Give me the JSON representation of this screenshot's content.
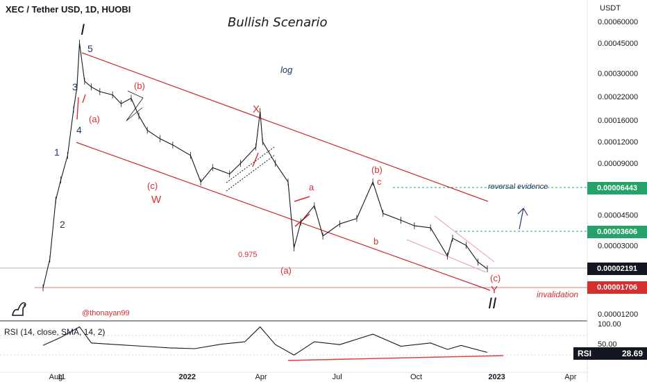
{
  "header": {
    "title": "XEC / Tether USD, 1D, HUOBI",
    "scenario": "Bullish Scenario",
    "currency": "USDT",
    "author": "@thonayan99"
  },
  "chart_data": {
    "type": "line",
    "scale": "log",
    "symbol": "XEC/USDT",
    "x": [
      "Aug",
      "11",
      "2022",
      "Apr",
      "Jul",
      "Oct",
      "2023",
      "Apr"
    ],
    "y_ticks": [
      "0.00060000",
      "0.00045000",
      "0.00030000",
      "0.00022000",
      "0.00016000",
      "0.00012000",
      "0.00009000",
      "0.00004500",
      "0.00003000",
      "0.00001200"
    ],
    "price_series": {
      "name": "XEC/USDT",
      "points": [
        [
          "2021-07-20",
          1.7e-05
        ],
        [
          "2021-07-28",
          2.5e-05
        ],
        [
          "2021-08-04",
          5.5e-05
        ],
        [
          "2021-08-10",
          7.2e-05
        ],
        [
          "2021-08-18",
          0.0001
        ],
        [
          "2021-08-25",
          0.000185
        ],
        [
          "2021-08-29",
          0.00025
        ],
        [
          "2021-09-01",
          0.00045
        ],
        [
          "2021-09-07",
          0.00027
        ],
        [
          "2021-09-15",
          0.00025
        ],
        [
          "2021-09-25",
          0.000235
        ],
        [
          "2021-10-10",
          0.000225
        ],
        [
          "2021-10-20",
          0.0002
        ],
        [
          "2021-11-01",
          0.000215
        ],
        [
          "2021-11-10",
          0.00017
        ],
        [
          "2021-11-20",
          0.00014
        ],
        [
          "2021-12-05",
          0.000125
        ],
        [
          "2021-12-20",
          0.000115
        ],
        [
          "2022-01-10",
          0.0001
        ],
        [
          "2022-01-22",
          7e-05
        ],
        [
          "2022-02-05",
          8.5e-05
        ],
        [
          "2022-02-25",
          7.8e-05
        ],
        [
          "2022-03-10",
          9e-05
        ],
        [
          "2022-03-28",
          0.000112
        ],
        [
          "2022-04-02",
          0.00018
        ],
        [
          "2022-04-05",
          0.00012
        ],
        [
          "2022-04-20",
          9e-05
        ],
        [
          "2022-05-05",
          7e-05
        ],
        [
          "2022-05-12",
          2.9e-05
        ],
        [
          "2022-05-20",
          4.1e-05
        ],
        [
          "2022-06-05",
          5.1e-05
        ],
        [
          "2022-06-15",
          3.4e-05
        ],
        [
          "2022-07-05",
          4e-05
        ],
        [
          "2022-07-25",
          4.3e-05
        ],
        [
          "2022-08-13",
          7e-05
        ],
        [
          "2022-08-25",
          4.6e-05
        ],
        [
          "2022-09-15",
          4.2e-05
        ],
        [
          "2022-10-01",
          3.9e-05
        ],
        [
          "2022-10-20",
          3.8e-05
        ],
        [
          "2022-11-09",
          2.6e-05
        ],
        [
          "2022-11-15",
          3.3e-05
        ],
        [
          "2022-12-01",
          3e-05
        ],
        [
          "2022-12-15",
          2.4e-05
        ],
        [
          "2022-12-26",
          2.19e-05
        ]
      ]
    },
    "rsi_series": {
      "name": "RSI (14, close, SMA, 14, 2)",
      "y_ticks": [
        "100.00",
        "50.00"
      ],
      "points": [
        [
          "2021-07-20",
          46
        ],
        [
          "2021-08-10",
          66
        ],
        [
          "2021-09-01",
          92
        ],
        [
          "2021-09-15",
          52
        ],
        [
          "2021-10-15",
          48
        ],
        [
          "2021-11-15",
          44
        ],
        [
          "2021-12-15",
          40
        ],
        [
          "2022-01-15",
          38
        ],
        [
          "2022-02-15",
          49
        ],
        [
          "2022-03-15",
          55
        ],
        [
          "2022-04-02",
          92
        ],
        [
          "2022-04-20",
          48
        ],
        [
          "2022-05-12",
          22
        ],
        [
          "2022-06-05",
          55
        ],
        [
          "2022-07-05",
          48
        ],
        [
          "2022-08-13",
          74
        ],
        [
          "2022-09-15",
          44
        ],
        [
          "2022-10-20",
          52
        ],
        [
          "2022-11-09",
          36
        ],
        [
          "2022-11-25",
          46
        ],
        [
          "2022-12-26",
          28.69
        ]
      ]
    },
    "price_tags": [
      {
        "label": "0.00006443",
        "color": "#26a269"
      },
      {
        "label": "0.00003606",
        "color": "#26a269"
      },
      {
        "label": "0.00002191",
        "color": "#131722"
      },
      {
        "label": "0.00001706",
        "color": "#d32f2f"
      }
    ],
    "rsi_tag": {
      "name": "RSI",
      "value": "28.69"
    },
    "annotations": {
      "log": "log",
      "reversal": "reversal evidence",
      "invalidation": "invalidation",
      "fib": "0.975",
      "wave_I": "I",
      "wave_II": "II",
      "w1": "1",
      "w2": "2",
      "w3": "3",
      "w4": "4",
      "w5": "5",
      "wa": "(a)",
      "wb": "(b)",
      "wc": "(c)",
      "wW": "W",
      "wX": "X",
      "wa2": "(a)",
      "wb2": "(b)",
      "wa_small": "a",
      "wb_small": "b",
      "wc_small": "c",
      "wc2": "(c)",
      "wY": "Y"
    }
  }
}
